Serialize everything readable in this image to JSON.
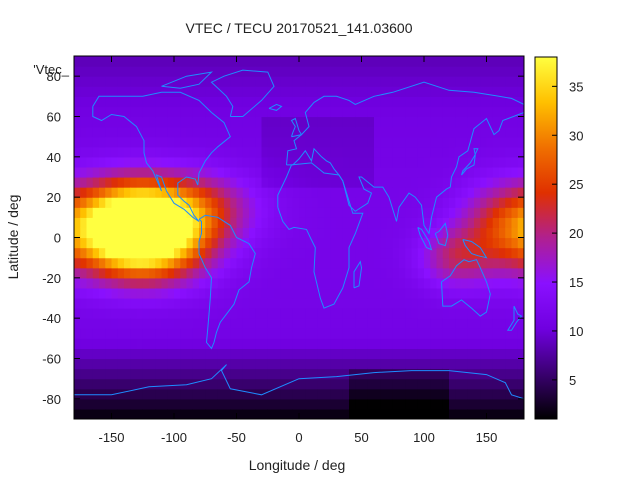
{
  "chart_data": {
    "type": "heatmap",
    "title": "VTEC / TECU 20170521_141.03600",
    "xlabel": "Longitude / deg",
    "ylabel": "Latitude / deg",
    "legend_label": "'Vtec_",
    "xlim": [
      -180,
      180
    ],
    "ylim": [
      -90,
      90
    ],
    "x_ticks": [
      -150,
      -100,
      -50,
      0,
      50,
      100,
      150
    ],
    "y_ticks": [
      -80,
      -60,
      -40,
      -20,
      0,
      20,
      40,
      60,
      80
    ],
    "colorbar": {
      "range": [
        1,
        38
      ],
      "ticks": [
        5,
        10,
        15,
        20,
        25,
        30,
        35
      ],
      "palette": [
        "#000000",
        "#3a0070",
        "#7000e0",
        "#8a10ff",
        "#b02090",
        "#e03000",
        "#f07000",
        "#ffc000",
        "#ffff40"
      ]
    },
    "coastline_color": "#1e8cff",
    "features": [
      {
        "lon": -140,
        "lat": 5,
        "peak_value": 38,
        "spread_lon": 28,
        "spread_lat": 15
      },
      {
        "lon": -110,
        "lat": 0,
        "peak_value": 30,
        "spread_lon": 30,
        "spread_lat": 14
      },
      {
        "lon": -90,
        "lat": 15,
        "peak_value": 22,
        "spread_lon": 35,
        "spread_lat": 12
      },
      {
        "lon": 165,
        "lat": 5,
        "peak_value": 22,
        "spread_lon": 25,
        "spread_lat": 15
      },
      {
        "lon": 125,
        "lat": -10,
        "peak_value": 18,
        "spread_lon": 20,
        "spread_lat": 10
      }
    ]
  }
}
